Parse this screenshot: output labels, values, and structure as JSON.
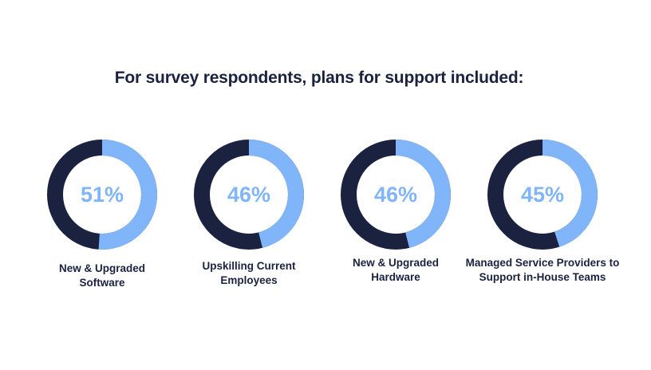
{
  "title": "For survey respondents, plans for support included:",
  "colors": {
    "track": "#1a2240",
    "fill": "#80b6f9",
    "value_text": "#80b6f9",
    "label_text": "#1a2240",
    "background": "#ffffff"
  },
  "chart_data": {
    "type": "pie",
    "title": "For survey respondents, plans for support included:",
    "unit": "%",
    "categories": [
      "New & Upgraded Software",
      "Upskilling Current Employees",
      "New & Upgraded Hardware",
      "Managed Service Providers to Support in-House Teams"
    ],
    "values": [
      51,
      46,
      46,
      45
    ],
    "items": [
      {
        "value": 51,
        "value_label": "51%",
        "label_lines": [
          "New & Upgraded",
          "Software"
        ]
      },
      {
        "value": 46,
        "value_label": "46%",
        "label_lines": [
          "Upskilling Current",
          "Employees"
        ]
      },
      {
        "value": 46,
        "value_label": "46%",
        "label_lines": [
          "New & Upgraded",
          "Hardware"
        ]
      },
      {
        "value": 45,
        "value_label": "45%",
        "label_lines": [
          "Managed Service Providers to",
          "Support in-House Teams"
        ]
      }
    ]
  }
}
